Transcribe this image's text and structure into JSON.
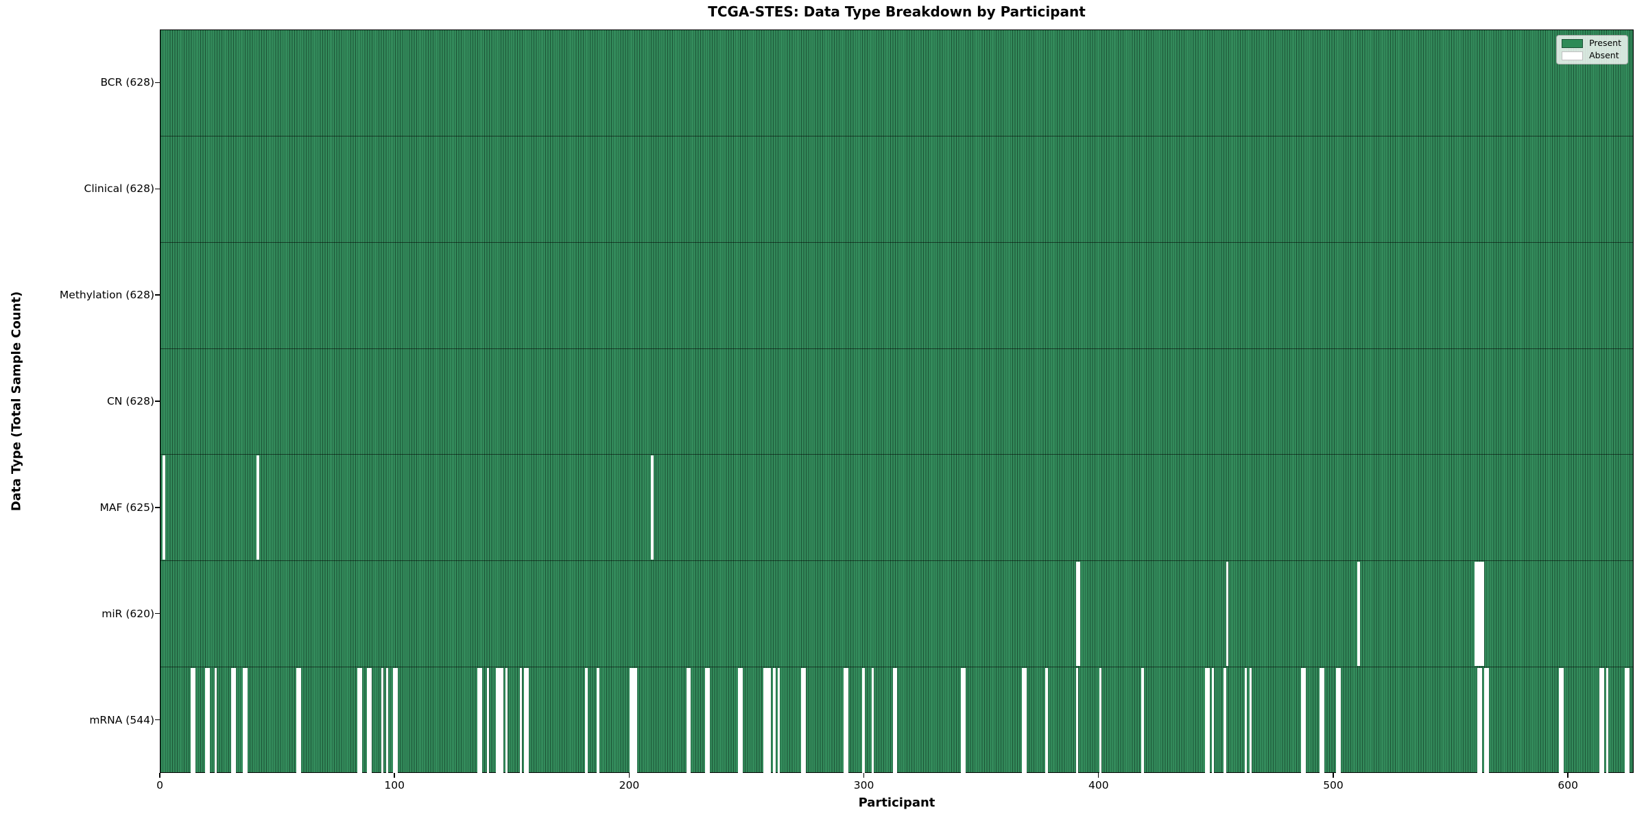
{
  "title": "TCGA-STES: Data Type Breakdown by Participant",
  "xlabel": "Participant",
  "ylabel": "Data Type (Total Sample Count)",
  "legend": {
    "present_label": "Present",
    "absent_label": "Absent"
  },
  "colors": {
    "present_fill": "#2e8b57",
    "bar_edge": "#1b5134",
    "absent_fill": "#ffffff",
    "spine": "#000000"
  },
  "chart_data": {
    "type": "heatmap",
    "title": "TCGA-STES: Data Type Breakdown by Participant",
    "xlabel": "Participant",
    "ylabel": "Data Type (Total Sample Count)",
    "legend": [
      "Present",
      "Absent"
    ],
    "legend_position": "upper right",
    "grid": false,
    "n_participants": 628,
    "x_range": [
      0,
      628
    ],
    "x_ticks": [
      0,
      100,
      200,
      300,
      400,
      500,
      600
    ],
    "rows": [
      {
        "label": "BCR (628)",
        "data_type": "BCR",
        "present_count": 628,
        "absent_count": 0,
        "absent_participants": []
      },
      {
        "label": "Clinical (628)",
        "data_type": "Clinical",
        "present_count": 628,
        "absent_count": 0,
        "absent_participants": []
      },
      {
        "label": "Methylation (628)",
        "data_type": "Methylation",
        "present_count": 628,
        "absent_count": 0,
        "absent_participants": []
      },
      {
        "label": "CN (628)",
        "data_type": "CN",
        "present_count": 628,
        "absent_count": 0,
        "absent_participants": []
      },
      {
        "label": "MAF (625)",
        "data_type": "MAF",
        "present_count": 625,
        "absent_count": 3,
        "absent_participants": [
          1,
          41,
          209
        ]
      },
      {
        "label": "miR (620)",
        "data_type": "miR",
        "present_count": 620,
        "absent_count": 8,
        "absent_participants": [
          390,
          391,
          454,
          510,
          560,
          561,
          562,
          563
        ]
      },
      {
        "label": "mRNA (544)",
        "data_type": "mRNA",
        "present_count": 544,
        "absent_count": 84,
        "absent_participants": [
          13,
          14,
          19,
          20,
          23,
          30,
          31,
          35,
          36,
          58,
          59,
          84,
          85,
          88,
          89,
          94,
          96,
          99,
          100,
          135,
          136,
          139,
          143,
          144,
          145,
          147,
          153,
          155,
          156,
          181,
          186,
          200,
          201,
          202,
          224,
          225,
          232,
          233,
          246,
          247,
          257,
          258,
          259,
          261,
          263,
          273,
          274,
          291,
          292,
          299,
          303,
          312,
          313,
          341,
          342,
          367,
          368,
          377,
          390,
          400,
          418,
          445,
          446,
          448,
          453,
          462,
          464,
          486,
          487,
          494,
          495,
          501,
          502,
          561,
          562,
          564,
          565,
          596,
          597,
          613,
          614,
          616,
          624,
          625
        ]
      }
    ]
  }
}
